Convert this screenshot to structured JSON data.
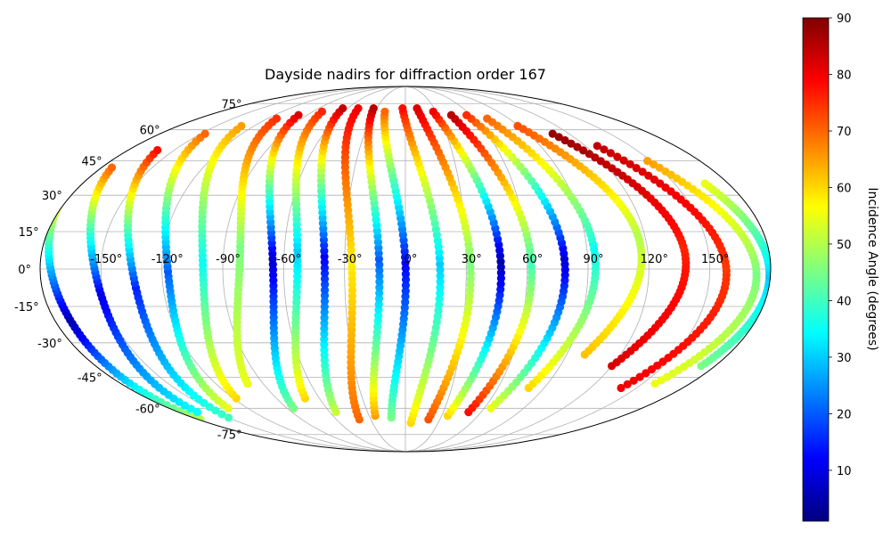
{
  "chart_data": {
    "type": "scatter",
    "projection": "mollweide",
    "title": "Dayside nadirs for diffraction order 167",
    "xlabel": "",
    "ylabel": "",
    "xlim": [
      -180,
      180
    ],
    "ylim": [
      -90,
      90
    ],
    "grid": true,
    "x_ticks": [
      "-150°",
      "-120°",
      "-90°",
      "-60°",
      "-30°",
      "0°",
      "30°",
      "60°",
      "90°",
      "120°",
      "150°"
    ],
    "x_tick_values": [
      -150,
      -120,
      -90,
      -60,
      -30,
      0,
      30,
      60,
      90,
      120,
      150
    ],
    "y_ticks": [
      "75°",
      "60°",
      "45°",
      "30°",
      "15°",
      "0°",
      "-15°",
      "-30°",
      "-45°",
      "-60°",
      "-75°"
    ],
    "y_tick_values": [
      75,
      60,
      45,
      30,
      15,
      0,
      -15,
      -30,
      -45,
      -60,
      -75
    ],
    "colorbar": {
      "label": "Incidence Angle (degrees)",
      "colormap": "jet",
      "range": [
        1,
        90
      ],
      "ticks": [
        "10",
        "20",
        "30",
        "40",
        "50",
        "60",
        "70",
        "80",
        "90"
      ],
      "tick_values": [
        10,
        20,
        30,
        40,
        50,
        60,
        70,
        80,
        90
      ],
      "colors": [
        "#00007f",
        "#0000ff",
        "#007fff",
        "#00ffff",
        "#7fff7f",
        "#ffff00",
        "#ff7f00",
        "#ff0000",
        "#7f0000"
      ]
    },
    "series": [
      {
        "lon0": -178,
        "lonAmp": 8,
        "latMin": -66,
        "latMax": 25,
        "i_a": 50,
        "i_b": 5,
        "i_c": 55
      },
      {
        "lon0": -165,
        "lonAmp": 18,
        "latMin": -62,
        "latMax": 42,
        "i_a": 35,
        "i_b": 10,
        "i_c": 70
      },
      {
        "lon0": -150,
        "lonAmp": 22,
        "latMin": -65,
        "latMax": 50,
        "i_a": 40,
        "i_b": 15,
        "i_c": 78
      },
      {
        "lon0": -135,
        "lonAmp": 24,
        "latMin": -60,
        "latMax": 58,
        "i_a": 55,
        "i_b": 20,
        "i_c": 70
      },
      {
        "lon0": -118,
        "lonAmp": 24,
        "latMin": -55,
        "latMax": 62,
        "i_a": 60,
        "i_b": 35,
        "i_c": 65
      },
      {
        "lon0": -100,
        "lonAmp": 24,
        "latMin": -48,
        "latMax": 66,
        "i_a": 55,
        "i_b": 45,
        "i_c": 75
      },
      {
        "lon0": -85,
        "lonAmp": 26,
        "latMin": -60,
        "latMax": 68,
        "i_a": 45,
        "i_b": 8,
        "i_c": 82
      },
      {
        "lon0": -70,
        "lonAmp": 22,
        "latMin": -55,
        "latMax": 70,
        "i_a": 60,
        "i_b": 30,
        "i_c": 76
      },
      {
        "lon0": -55,
        "lonAmp": 20,
        "latMin": -62,
        "latMax": 72,
        "i_a": 52,
        "i_b": 12,
        "i_c": 84
      },
      {
        "lon0": -40,
        "lonAmp": 18,
        "latMin": -66,
        "latMax": 72,
        "i_a": 70,
        "i_b": 58,
        "i_c": 80
      },
      {
        "lon0": -25,
        "lonAmp": 16,
        "latMin": -64,
        "latMax": 72,
        "i_a": 65,
        "i_b": 20,
        "i_c": 85
      },
      {
        "lon0": -12,
        "lonAmp": 16,
        "latMin": -65,
        "latMax": 70,
        "i_a": 45,
        "i_b": 12,
        "i_c": 70
      },
      {
        "lon0": 5,
        "lonAmp": 16,
        "latMin": -68,
        "latMax": 72,
        "i_a": 60,
        "i_b": 30,
        "i_c": 78
      },
      {
        "lon0": 20,
        "lonAmp": 16,
        "latMin": -66,
        "latMax": 72,
        "i_a": 72,
        "i_b": 45,
        "i_c": 82
      },
      {
        "lon0": 35,
        "lonAmp": 16,
        "latMin": -64,
        "latMax": 70,
        "i_a": 60,
        "i_b": 5,
        "i_c": 80
      },
      {
        "lon0": 50,
        "lonAmp": 16,
        "latMin": -62,
        "latMax": 68,
        "i_a": 78,
        "i_b": 40,
        "i_c": 85
      },
      {
        "lon0": 65,
        "lonAmp": 18,
        "latMin": -60,
        "latMax": 68,
        "i_a": 55,
        "i_b": 8,
        "i_c": 75
      },
      {
        "lon0": 80,
        "lonAmp": 18,
        "latMin": -50,
        "latMax": 66,
        "i_a": 60,
        "i_b": 35,
        "i_c": 70
      },
      {
        "lon0": 100,
        "lonAmp": 22,
        "latMin": -35,
        "latMax": 62,
        "i_a": 62,
        "i_b": 50,
        "i_c": 72
      },
      {
        "lon0": 120,
        "lonAmp": 24,
        "latMin": -40,
        "latMax": 58,
        "i_a": 82,
        "i_b": 76,
        "i_c": 88
      },
      {
        "lon0": 140,
        "lonAmp": 24,
        "latMin": -50,
        "latMax": 52,
        "i_a": 80,
        "i_b": 74,
        "i_c": 84
      },
      {
        "lon0": 158,
        "lonAmp": 20,
        "latMin": -48,
        "latMax": 45,
        "i_a": 55,
        "i_b": 45,
        "i_c": 65
      },
      {
        "lon0": 172,
        "lonAmp": 10,
        "latMin": -40,
        "latMax": 35,
        "i_a": 45,
        "i_b": 30,
        "i_c": 55
      }
    ]
  }
}
